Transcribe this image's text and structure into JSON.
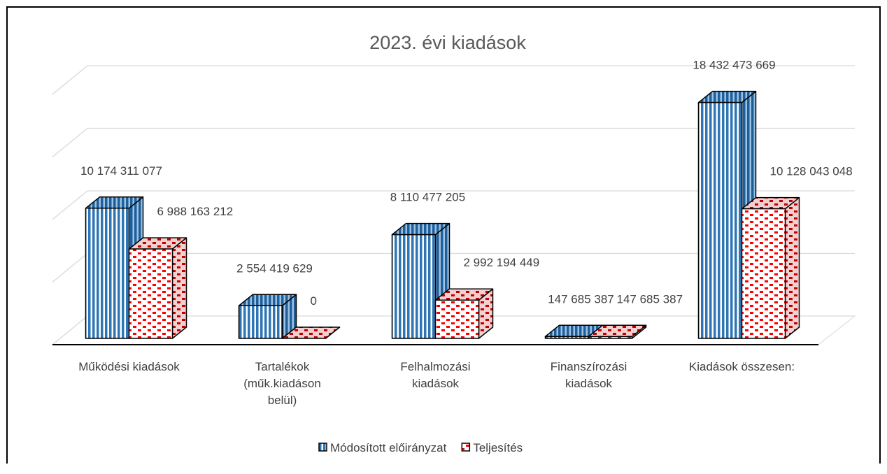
{
  "chart_data": {
    "type": "bar3d",
    "title": "2023. évi kiadások",
    "categories": [
      "Működési kiadások",
      "Tartalékok\n(műk.kiadáson\nbelül)",
      "Felhalmozási\nkiadások",
      "Finanszírozási\nkiadások",
      "Kiadások összesen:"
    ],
    "series": [
      {
        "name": "Módosított előirányzat",
        "color": "#2e75b6",
        "values": [
          10174311077,
          2554419629,
          8110477205,
          147685387,
          18432473669
        ],
        "value_labels": [
          "10 174 311 077",
          "2 554 419 629",
          "8 110 477 205",
          "147 685 387",
          "18 432 473 669"
        ]
      },
      {
        "name": "Teljesítés",
        "color": "#ff0000",
        "values": [
          6988163212,
          0,
          2992194449,
          147685387,
          10128043048
        ],
        "value_labels": [
          "6 988 163 212",
          "0",
          "2 992 194 449",
          "147 685 387",
          "10 128 043 048"
        ]
      }
    ],
    "ylim": [
      0,
      20000000000
    ],
    "yticks": [
      0,
      5000000000,
      10000000000,
      15000000000,
      20000000000
    ],
    "grid": true
  }
}
